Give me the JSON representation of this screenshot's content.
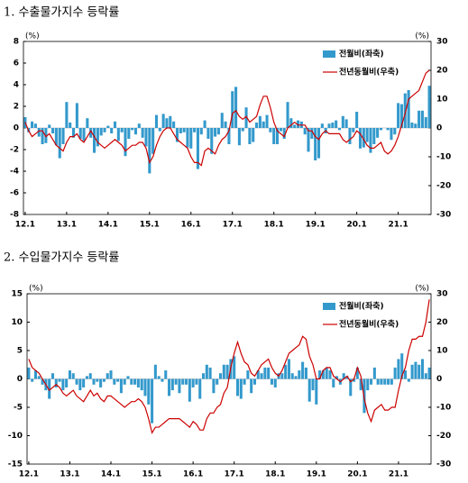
{
  "chart_data": [
    {
      "type": "bar-line",
      "title": "1. 수출물가지수 등락률",
      "y_unit": "(%)",
      "y2_unit": "(%)",
      "legend": "upper right",
      "categories": [
        "12.1",
        null,
        null,
        null,
        null,
        null,
        null,
        null,
        null,
        null,
        null,
        null,
        "13.1",
        null,
        null,
        null,
        null,
        null,
        null,
        null,
        null,
        null,
        null,
        null,
        "14.1",
        null,
        null,
        null,
        null,
        null,
        null,
        null,
        null,
        null,
        null,
        null,
        "15.1",
        null,
        null,
        null,
        null,
        null,
        null,
        null,
        null,
        null,
        null,
        null,
        "16.1",
        null,
        null,
        null,
        null,
        null,
        null,
        null,
        null,
        null,
        null,
        null,
        "17.1",
        null,
        null,
        null,
        null,
        null,
        null,
        null,
        null,
        null,
        null,
        null,
        "18.1",
        null,
        null,
        null,
        null,
        null,
        null,
        null,
        null,
        null,
        null,
        null,
        "19.1",
        null,
        null,
        null,
        null,
        null,
        null,
        null,
        null,
        null,
        null,
        null,
        "20.1",
        null,
        null,
        null,
        null,
        null,
        null,
        null,
        null,
        null,
        null,
        null,
        "21.1",
        null,
        null,
        null,
        null,
        null,
        null,
        null,
        null,
        null
      ],
      "series": [
        {
          "name": "전월비(좌축)",
          "color": "#3399cc",
          "values": [
            1.0,
            -0.4,
            0.6,
            0.4,
            -0.8,
            -1.5,
            -1.4,
            0.3,
            -0.5,
            -1.6,
            -2.8,
            -1.5,
            2.4,
            0.5,
            -0.9,
            2.3,
            -1.0,
            -1.2,
            0.9,
            -0.9,
            -2.3,
            -1.7,
            -0.7,
            -0.4,
            0.2,
            -0.5,
            0.6,
            -1.2,
            -0.4,
            -2.6,
            -1.0,
            -0.2,
            -0.6,
            0.4,
            -0.9,
            -1.7,
            -4.2,
            -2.4,
            1.2,
            -0.3,
            1.3,
            0.9,
            1.1,
            0.6,
            -1.3,
            -0.5,
            -0.4,
            -1.8,
            -1.9,
            -0.4,
            -3.8,
            -0.6,
            0.7,
            -1.0,
            -2.4,
            -0.8,
            -0.6,
            1.4,
            0.6,
            -1.5,
            3.4,
            3.8,
            -1.6,
            -0.3,
            1.9,
            -1.5,
            -1.3,
            0.5,
            1.1,
            0.6,
            1.2,
            -0.4,
            -1.5,
            -1.5,
            -0.3,
            -1.0,
            2.4,
            0.9,
            0.3,
            0.7,
            0.6,
            -0.6,
            -2.2,
            -1.0,
            -3.0,
            -2.8,
            0.4,
            -0.5,
            0.4,
            0.5,
            0.7,
            -0.2,
            1.1,
            0.8,
            -1.5,
            -0.4,
            1.5,
            -1.9,
            -1.8,
            -1.3,
            -2.3,
            -1.5,
            -0.9,
            -0.2,
            0.0,
            -0.2,
            -1.1,
            -0.6,
            2.3,
            2.2,
            3.2,
            3.5,
            0.5,
            0.4,
            1.6,
            1.6,
            1.0,
            3.9
          ]
        },
        {
          "name": "전년동월비(우축)",
          "color": "#cc0000",
          "axis": "y2",
          "values": [
            2,
            -1,
            -3,
            -2,
            -1,
            -1,
            -3,
            -2,
            -4,
            -6,
            -7,
            -8,
            -5,
            -3,
            -3,
            -2,
            -4,
            -5,
            -3,
            -1,
            -3,
            -5,
            -6,
            -7,
            -6,
            -5,
            -4,
            -5,
            -6,
            -8,
            -7,
            -6,
            -6,
            -5,
            -5,
            -7,
            -12,
            -10,
            -6,
            -3,
            -1,
            0,
            0,
            -2,
            -4,
            -5,
            -6,
            -7,
            -10,
            -12,
            -12,
            -13,
            -8,
            -7,
            -8,
            -9,
            -6,
            -4,
            -3,
            -1,
            5,
            6,
            4,
            3,
            4,
            2,
            3,
            4,
            8,
            11,
            11,
            7,
            2,
            -1,
            -2,
            -3,
            0,
            1,
            2,
            1,
            1,
            1,
            -1,
            -1,
            -3,
            -4,
            -2,
            -1,
            -2,
            -2,
            -2,
            -2,
            -4,
            -5,
            -4,
            -3,
            -1,
            -2,
            -4,
            -6,
            -7,
            -7,
            -6,
            -5,
            -8,
            -9,
            -8,
            -6,
            -3,
            1,
            5,
            10,
            11,
            12,
            13,
            16,
            19,
            20
          ]
        }
      ],
      "ylim": [
        -8,
        8
      ],
      "yticks": [
        -8,
        -6,
        -4,
        -2,
        0,
        2,
        4,
        6,
        8
      ],
      "y2lim": [
        -30,
        30
      ],
      "y2ticks": [
        -30,
        -20,
        -10,
        0,
        10,
        20,
        30
      ]
    },
    {
      "type": "bar-line",
      "title": "2. 수입물가지수 등락률",
      "y_unit": "(%)",
      "y2_unit": "(%)",
      "legend": "upper right",
      "categories": [
        "12.1",
        null,
        null,
        null,
        null,
        null,
        null,
        null,
        null,
        null,
        null,
        null,
        "13.1",
        null,
        null,
        null,
        null,
        null,
        null,
        null,
        null,
        null,
        null,
        null,
        "14.1",
        null,
        null,
        null,
        null,
        null,
        null,
        null,
        null,
        null,
        null,
        null,
        "15.1",
        null,
        null,
        null,
        null,
        null,
        null,
        null,
        null,
        null,
        null,
        null,
        "16.1",
        null,
        null,
        null,
        null,
        null,
        null,
        null,
        null,
        null,
        null,
        null,
        "17.1",
        null,
        null,
        null,
        null,
        null,
        null,
        null,
        null,
        null,
        null,
        null,
        "18.1",
        null,
        null,
        null,
        null,
        null,
        null,
        null,
        null,
        null,
        null,
        null,
        "19.1",
        null,
        null,
        null,
        null,
        null,
        null,
        null,
        null,
        null,
        null,
        null,
        "20.1",
        null,
        null,
        null,
        null,
        null,
        null,
        null,
        null,
        null,
        null,
        null,
        "21.1",
        null,
        null,
        null,
        null,
        null,
        null,
        null,
        null,
        null
      ],
      "series": [
        {
          "name": "전월비(좌축)",
          "color": "#3399cc",
          "values": [
            2,
            -0.5,
            1.5,
            0.5,
            -1,
            -2,
            -3.5,
            1,
            -1.5,
            -0.5,
            -2,
            -1.5,
            1.5,
            1,
            -1,
            -2,
            -1.5,
            0.5,
            1,
            -1,
            -0.5,
            -1.5,
            -0.5,
            1,
            1.5,
            -1,
            -0.5,
            -2.5,
            -1,
            0.5,
            -1,
            -1,
            -1.5,
            -2,
            -3,
            -4.5,
            -7.8,
            2.5,
            0.5,
            -0.5,
            1.5,
            -3,
            -2,
            -1,
            -2.5,
            -1,
            -1,
            -4,
            -1.5,
            -1,
            -3.5,
            1,
            2.5,
            2,
            -2.5,
            -1,
            1,
            2.5,
            2.5,
            3.5,
            4,
            -3,
            -3.5,
            -1,
            1.5,
            -2.5,
            -1,
            1.5,
            1,
            2,
            2,
            -1,
            -1.5,
            1,
            1,
            2.5,
            3.5,
            1,
            0.5,
            1.5,
            3,
            2,
            -4,
            -2,
            -4.5,
            1.5,
            1.5,
            2,
            1.5,
            -1.5,
            0.5,
            -1,
            1,
            0.5,
            -3,
            -0.5,
            2,
            -2,
            -6,
            -2,
            -1,
            2,
            -1,
            -1,
            -1,
            -1,
            -1,
            2,
            3.5,
            4.5,
            1.5,
            -0.5,
            2.5,
            3,
            2.5,
            3.5,
            1,
            2
          ]
        },
        {
          "name": "전년동월비(우축)",
          "color": "#cc0000",
          "axis": "y2",
          "values": [
            7,
            4,
            3,
            2,
            0,
            -2,
            -4,
            -3,
            -2,
            -3,
            -5,
            -6,
            -5,
            -4,
            -6,
            -7,
            -8,
            -6,
            -4,
            -6,
            -5,
            -7,
            -8,
            -6,
            -6,
            -7,
            -8,
            -9,
            -10,
            -9,
            -8,
            -8,
            -7,
            -8,
            -10,
            -14,
            -19,
            -17,
            -17,
            -16,
            -15,
            -14,
            -14,
            -14,
            -14,
            -15,
            -16,
            -17,
            -15,
            -16,
            -18,
            -18,
            -14,
            -12,
            -12,
            -10,
            -9,
            -5,
            -3,
            4,
            9,
            13,
            9,
            6,
            5,
            2,
            1,
            3,
            5,
            6,
            7,
            4,
            2,
            1,
            3,
            6,
            9,
            10,
            11,
            12,
            15,
            14,
            8,
            5,
            0,
            0,
            3,
            4,
            4,
            1,
            0,
            -1,
            0,
            1,
            -1,
            0,
            4,
            1,
            -7,
            -12,
            -15,
            -11,
            -10,
            -9,
            -11,
            -11,
            -10,
            -10,
            -4,
            1,
            4,
            10,
            14,
            14,
            15,
            15,
            20,
            28
          ]
        }
      ],
      "ylim": [
        -15,
        15
      ],
      "yticks": [
        -15,
        -10,
        -5,
        0,
        5,
        10,
        15
      ],
      "y2lim": [
        -30,
        30
      ],
      "y2ticks": [
        -30,
        -20,
        -10,
        0,
        10,
        20,
        30
      ]
    }
  ]
}
